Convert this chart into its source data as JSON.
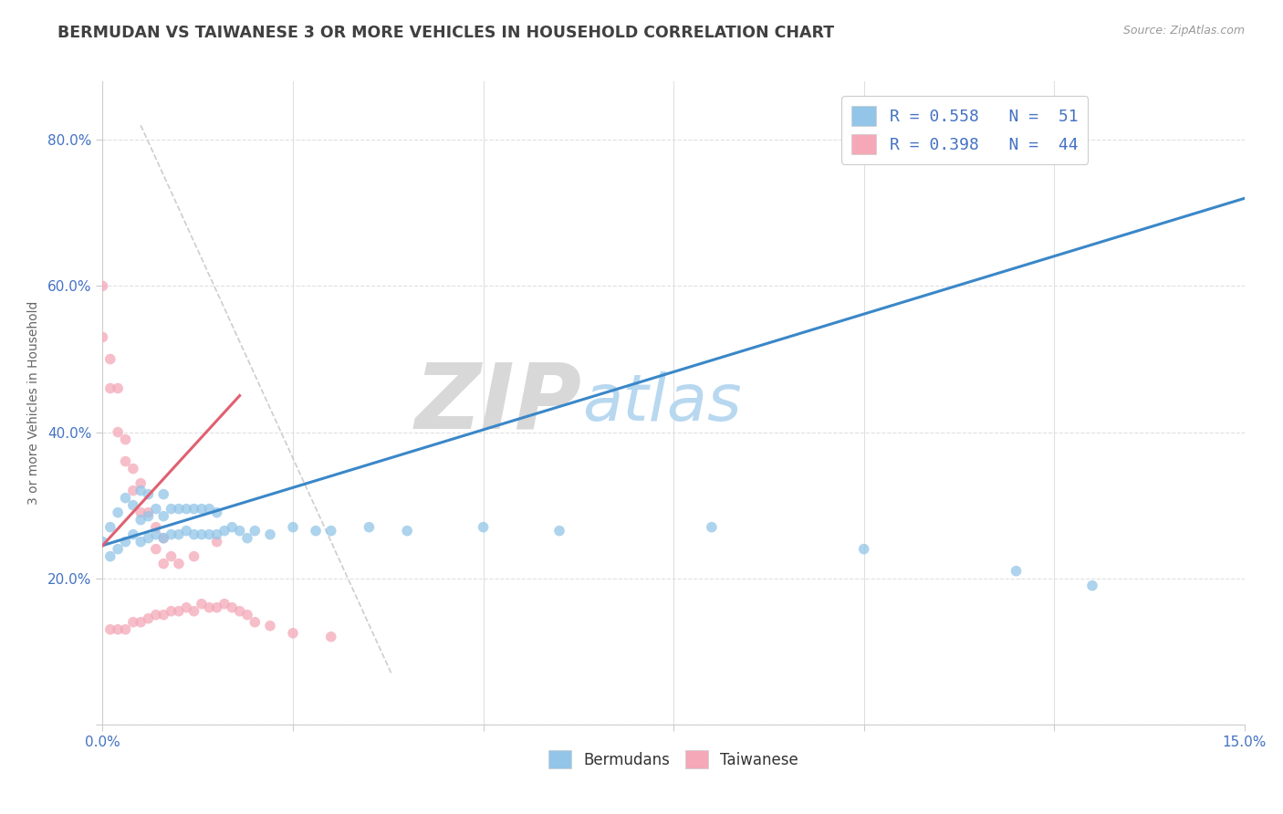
{
  "title": "BERMUDAN VS TAIWANESE 3 OR MORE VEHICLES IN HOUSEHOLD CORRELATION CHART",
  "source_text": "Source: ZipAtlas.com",
  "ylabel": "3 or more Vehicles in Household",
  "xlim": [
    0.0,
    0.15
  ],
  "ylim": [
    0.0,
    0.88
  ],
  "yticks": [
    0.0,
    0.2,
    0.4,
    0.6,
    0.8
  ],
  "yticklabels": [
    "",
    "20.0%",
    "40.0%",
    "60.0%",
    "80.0%"
  ],
  "bermudans_color": "#92c5e8",
  "taiwanese_color": "#f4a8b8",
  "regression_blue_color": "#3a87c8",
  "regression_pink_color": "#e06070",
  "watermark_zip_color": "#d8d8d8",
  "watermark_atlas_color": "#b8d8f0",
  "background_color": "#ffffff",
  "title_color": "#404040",
  "title_fontsize": 12.5,
  "tick_label_color": "#4472c4",
  "legend_label_color": "#4472c4",
  "grid_color": "#e0e0e0",
  "ref_line_color": "#c8c8c8",
  "bermudans_x": [
    0.0,
    0.001,
    0.001,
    0.002,
    0.002,
    0.003,
    0.003,
    0.004,
    0.004,
    0.005,
    0.005,
    0.005,
    0.006,
    0.006,
    0.006,
    0.007,
    0.007,
    0.008,
    0.008,
    0.008,
    0.009,
    0.009,
    0.01,
    0.01,
    0.011,
    0.011,
    0.012,
    0.012,
    0.013,
    0.013,
    0.014,
    0.014,
    0.015,
    0.015,
    0.016,
    0.017,
    0.018,
    0.019,
    0.02,
    0.022,
    0.025,
    0.028,
    0.03,
    0.035,
    0.04,
    0.05,
    0.06,
    0.08,
    0.1,
    0.12,
    0.13
  ],
  "bermudans_y": [
    0.25,
    0.23,
    0.27,
    0.24,
    0.29,
    0.25,
    0.31,
    0.26,
    0.3,
    0.25,
    0.28,
    0.32,
    0.255,
    0.285,
    0.315,
    0.26,
    0.295,
    0.255,
    0.285,
    0.315,
    0.26,
    0.295,
    0.26,
    0.295,
    0.265,
    0.295,
    0.26,
    0.295,
    0.26,
    0.295,
    0.26,
    0.295,
    0.26,
    0.29,
    0.265,
    0.27,
    0.265,
    0.255,
    0.265,
    0.26,
    0.27,
    0.265,
    0.265,
    0.27,
    0.265,
    0.27,
    0.265,
    0.27,
    0.24,
    0.21,
    0.19
  ],
  "taiwanese_x": [
    0.0,
    0.0,
    0.001,
    0.001,
    0.001,
    0.002,
    0.002,
    0.002,
    0.003,
    0.003,
    0.003,
    0.004,
    0.004,
    0.004,
    0.005,
    0.005,
    0.005,
    0.006,
    0.006,
    0.007,
    0.007,
    0.007,
    0.008,
    0.008,
    0.008,
    0.009,
    0.009,
    0.01,
    0.01,
    0.011,
    0.012,
    0.012,
    0.013,
    0.014,
    0.015,
    0.015,
    0.016,
    0.017,
    0.018,
    0.019,
    0.02,
    0.022,
    0.025,
    0.03
  ],
  "taiwanese_y": [
    0.6,
    0.53,
    0.5,
    0.46,
    0.13,
    0.46,
    0.4,
    0.13,
    0.39,
    0.36,
    0.13,
    0.35,
    0.32,
    0.14,
    0.33,
    0.29,
    0.14,
    0.29,
    0.145,
    0.27,
    0.24,
    0.15,
    0.255,
    0.22,
    0.15,
    0.23,
    0.155,
    0.22,
    0.155,
    0.16,
    0.23,
    0.155,
    0.165,
    0.16,
    0.25,
    0.16,
    0.165,
    0.16,
    0.155,
    0.15,
    0.14,
    0.135,
    0.125,
    0.12
  ],
  "berm_line_x": [
    0.0,
    0.15
  ],
  "berm_line_y": [
    0.245,
    0.72
  ],
  "taiwan_line_x": [
    0.0,
    0.018
  ],
  "taiwan_line_y": [
    0.245,
    0.45
  ],
  "ref_line_x": [
    0.005,
    0.038
  ],
  "ref_line_y": [
    0.82,
    0.068
  ]
}
